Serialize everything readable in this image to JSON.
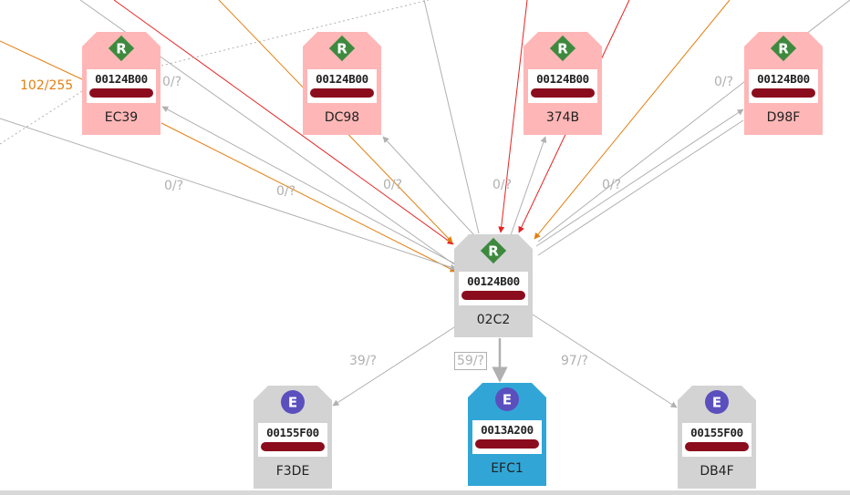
{
  "colors": {
    "router": "#ffb6b6",
    "coordinator": "#d3d3d3",
    "end_device": "#d3d3d3",
    "selected": "#31a6d6",
    "router_badge": "#3d8a3f",
    "end_badge": "#5b4fbe",
    "edge_gray": "#b0b0b0",
    "edge_red": "#e52222",
    "edge_orange": "#e27f12"
  },
  "nodes": [
    {
      "id": "EC39",
      "type": "router",
      "badge": "R",
      "hex": "00124B00",
      "name": "EC39",
      "fill": "#ffb6b6"
    },
    {
      "id": "DC98",
      "type": "router",
      "badge": "R",
      "hex": "00124B00",
      "name": "DC98",
      "fill": "#ffb6b6"
    },
    {
      "id": "374B",
      "type": "router",
      "badge": "R",
      "hex": "00124B00",
      "name": "374B",
      "fill": "#ffb6b6"
    },
    {
      "id": "D98F",
      "type": "router",
      "badge": "R",
      "hex": "00124B00",
      "name": "D98F",
      "fill": "#ffb6b6"
    },
    {
      "id": "02C2",
      "type": "router",
      "badge": "R",
      "hex": "00124B00",
      "name": "02C2",
      "fill": "#d3d3d3"
    },
    {
      "id": "F3DE",
      "type": "end-device",
      "badge": "E",
      "hex": "00155F00",
      "name": "F3DE",
      "fill": "#d3d3d3"
    },
    {
      "id": "EFC1",
      "type": "end-device",
      "badge": "E",
      "hex": "0013A200",
      "name": "EFC1",
      "fill": "#31a6d6",
      "selected": true
    },
    {
      "id": "DB4F",
      "type": "end-device",
      "badge": "E",
      "hex": "00155F00",
      "name": "DB4F",
      "fill": "#d3d3d3"
    }
  ],
  "edge_labels": [
    {
      "text": "102/255",
      "color": "#e27f12"
    },
    {
      "text": "0/?",
      "color": "#b0b0b0"
    },
    {
      "text": "0/?",
      "color": "#b0b0b0"
    },
    {
      "text": "0/?",
      "color": "#b0b0b0"
    },
    {
      "text": "0/?",
      "color": "#b0b0b0"
    },
    {
      "text": "0/?",
      "color": "#b0b0b0"
    },
    {
      "text": "0/?",
      "color": "#b0b0b0"
    },
    {
      "text": "0/?",
      "color": "#b0b0b0"
    },
    {
      "text": "39/?",
      "color": "#b0b0b0"
    },
    {
      "text": "59/?",
      "color": "#b0b0b0",
      "boxed": true
    },
    {
      "text": "97/?",
      "color": "#b0b0b0"
    }
  ]
}
